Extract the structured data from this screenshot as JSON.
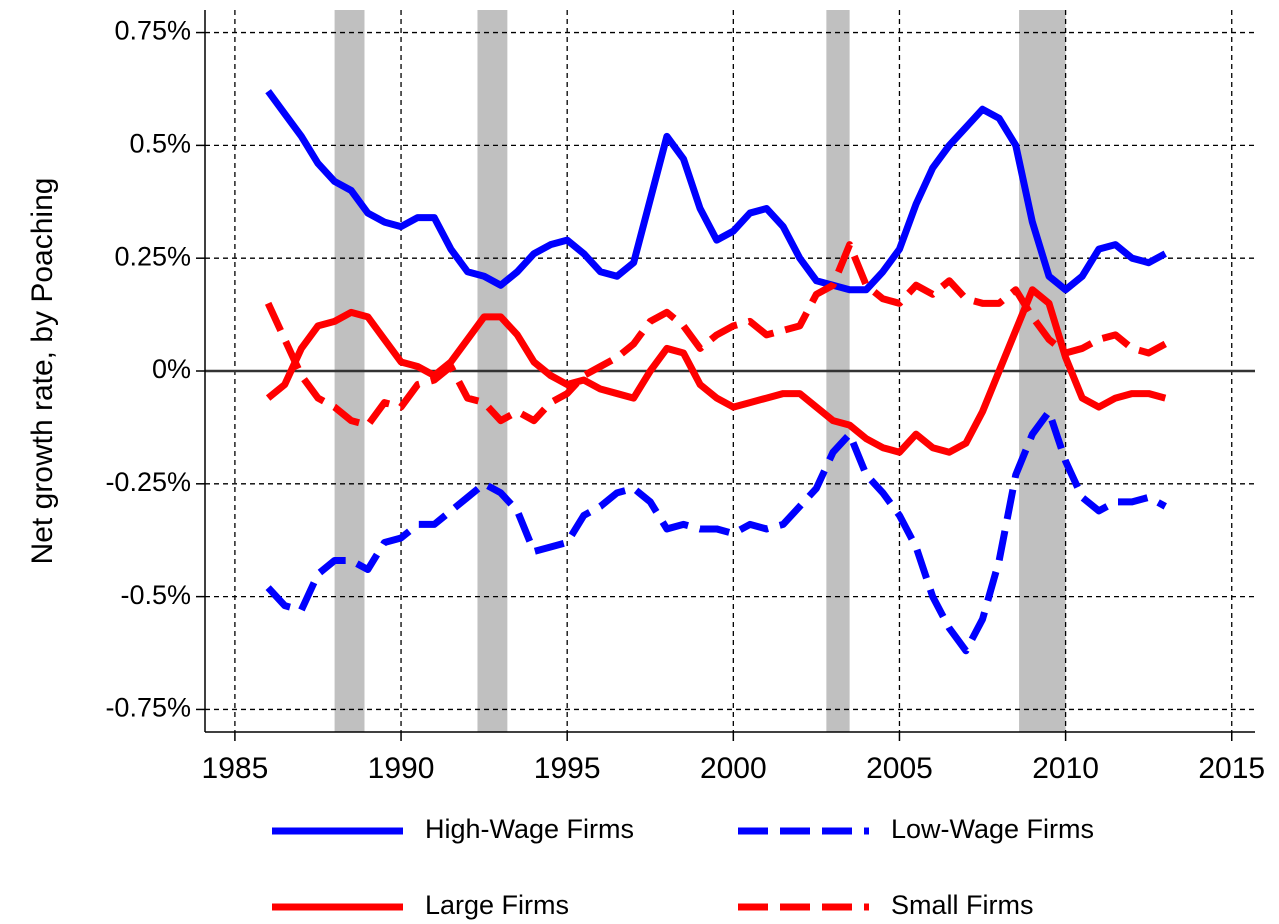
{
  "chart_data": {
    "type": "line",
    "y_label": "Net growth rate, by Poaching",
    "xlim": [
      1984.1,
      2015.7
    ],
    "ylim": [
      -0.8,
      0.8
    ],
    "xticks": [
      1985,
      1990,
      1995,
      2000,
      2005,
      2010,
      2015
    ],
    "yticks": [
      {
        "value": -0.75,
        "label": "-0.75%"
      },
      {
        "value": -0.5,
        "label": "-0.5%"
      },
      {
        "value": -0.25,
        "label": "-0.25%"
      },
      {
        "value": 0,
        "label": "0%"
      },
      {
        "value": 0.25,
        "label": "0.25%"
      },
      {
        "value": 0.5,
        "label": "0.5%"
      },
      {
        "value": 0.75,
        "label": "0.75%"
      }
    ],
    "grid": true,
    "reference_line": 0,
    "shaded_regions": [
      [
        1988.0,
        1988.9
      ],
      [
        1992.3,
        1993.2
      ],
      [
        2002.8,
        2003.5
      ],
      [
        2008.6,
        2010.0
      ]
    ],
    "shade_color": "#c0c0c0",
    "x": [
      1986,
      1986.5,
      1987,
      1987.5,
      1988,
      1988.5,
      1989,
      1989.5,
      1990,
      1990.5,
      1991,
      1991.5,
      1992,
      1992.5,
      1993,
      1993.5,
      1994,
      1994.5,
      1995,
      1995.5,
      1996,
      1996.5,
      1997,
      1997.5,
      1998,
      1998.5,
      1999,
      1999.5,
      2000,
      2000.5,
      2001,
      2001.5,
      2002,
      2002.5,
      2003,
      2003.5,
      2004,
      2004.5,
      2005,
      2005.5,
      2006,
      2006.5,
      2007,
      2007.5,
      2008,
      2008.5,
      2009,
      2009.5,
      2010,
      2010.5,
      2011,
      2011.5,
      2012,
      2012.5,
      2013
    ],
    "series": [
      {
        "name": "High-Wage Firms",
        "color": "#0000ff",
        "line_style": "solid",
        "values": [
          0.62,
          0.57,
          0.52,
          0.46,
          0.42,
          0.4,
          0.35,
          0.33,
          0.32,
          0.34,
          0.34,
          0.27,
          0.22,
          0.21,
          0.19,
          0.22,
          0.26,
          0.28,
          0.29,
          0.26,
          0.22,
          0.21,
          0.24,
          0.38,
          0.52,
          0.47,
          0.36,
          0.29,
          0.31,
          0.35,
          0.36,
          0.32,
          0.25,
          0.2,
          0.19,
          0.18,
          0.18,
          0.22,
          0.27,
          0.37,
          0.45,
          0.5,
          0.54,
          0.58,
          0.56,
          0.5,
          0.33,
          0.21,
          0.18,
          0.21,
          0.27,
          0.28,
          0.25,
          0.24,
          0.26
        ]
      },
      {
        "name": "Low-Wage Firms",
        "color": "#0000ff",
        "line_style": "dashed",
        "values": [
          -0.48,
          -0.52,
          -0.53,
          -0.45,
          -0.42,
          -0.42,
          -0.44,
          -0.38,
          -0.37,
          -0.34,
          -0.34,
          -0.31,
          -0.28,
          -0.25,
          -0.27,
          -0.31,
          -0.4,
          -0.39,
          -0.38,
          -0.32,
          -0.3,
          -0.27,
          -0.26,
          -0.29,
          -0.35,
          -0.34,
          -0.35,
          -0.35,
          -0.36,
          -0.34,
          -0.35,
          -0.34,
          -0.3,
          -0.26,
          -0.18,
          -0.14,
          -0.23,
          -0.27,
          -0.32,
          -0.39,
          -0.5,
          -0.57,
          -0.62,
          -0.55,
          -0.42,
          -0.23,
          -0.14,
          -0.09,
          -0.2,
          -0.28,
          -0.31,
          -0.29,
          -0.29,
          -0.28,
          -0.3
        ]
      },
      {
        "name": "Large Firms",
        "color": "#ff0000",
        "line_style": "solid",
        "values": [
          -0.06,
          -0.03,
          0.05,
          0.1,
          0.11,
          0.13,
          0.12,
          0.07,
          0.02,
          0.01,
          -0.01,
          0.02,
          0.07,
          0.12,
          0.12,
          0.08,
          0.02,
          -0.01,
          -0.03,
          -0.02,
          -0.04,
          -0.05,
          -0.06,
          0.0,
          0.05,
          0.04,
          -0.03,
          -0.06,
          -0.08,
          -0.07,
          -0.06,
          -0.05,
          -0.05,
          -0.08,
          -0.11,
          -0.12,
          -0.15,
          -0.17,
          -0.18,
          -0.14,
          -0.17,
          -0.18,
          -0.16,
          -0.09,
          0.0,
          0.09,
          0.18,
          0.15,
          0.03,
          -0.06,
          -0.08,
          -0.06,
          -0.05,
          -0.05,
          -0.06
        ]
      },
      {
        "name": "Small Firms",
        "color": "#ff0000",
        "line_style": "dashed",
        "values": [
          0.15,
          0.07,
          -0.01,
          -0.06,
          -0.08,
          -0.11,
          -0.12,
          -0.07,
          -0.08,
          -0.03,
          -0.02,
          0.01,
          -0.06,
          -0.07,
          -0.11,
          -0.09,
          -0.11,
          -0.07,
          -0.05,
          -0.01,
          0.01,
          0.03,
          0.06,
          0.11,
          0.13,
          0.1,
          0.05,
          0.08,
          0.1,
          0.11,
          0.08,
          0.09,
          0.1,
          0.17,
          0.19,
          0.28,
          0.19,
          0.16,
          0.15,
          0.19,
          0.17,
          0.2,
          0.16,
          0.15,
          0.15,
          0.18,
          0.12,
          0.07,
          0.04,
          0.05,
          0.07,
          0.08,
          0.05,
          0.04,
          0.06
        ]
      }
    ]
  }
}
